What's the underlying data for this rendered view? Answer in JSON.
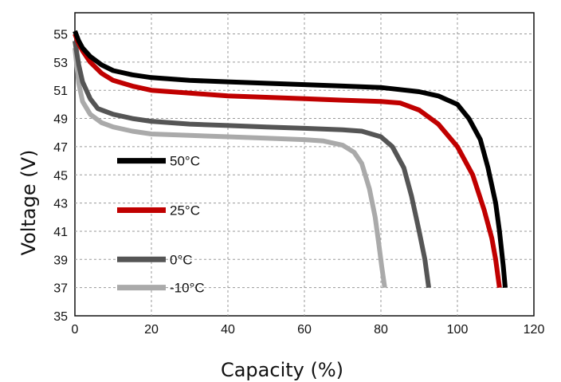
{
  "chart_data": {
    "type": "line",
    "title": "",
    "xlabel": "Capacity (%)",
    "ylabel": "Voltage (V)",
    "xlim": [
      0,
      120
    ],
    "ylim": [
      35,
      56.5
    ],
    "xticks": [
      0,
      20,
      40,
      60,
      80,
      100,
      120
    ],
    "yticks": [
      35,
      37,
      39,
      41,
      43,
      45,
      47,
      49,
      51,
      53,
      55
    ],
    "grid": true,
    "legend_position": "left",
    "series": [
      {
        "name": "50°C",
        "color": "#000000",
        "points": [
          [
            0,
            55.2
          ],
          [
            1,
            54.5
          ],
          [
            2,
            54.0
          ],
          [
            4,
            53.4
          ],
          [
            7,
            52.8
          ],
          [
            10,
            52.4
          ],
          [
            15,
            52.1
          ],
          [
            20,
            51.9
          ],
          [
            30,
            51.7
          ],
          [
            40,
            51.6
          ],
          [
            50,
            51.5
          ],
          [
            60,
            51.4
          ],
          [
            70,
            51.3
          ],
          [
            80,
            51.2
          ],
          [
            90,
            50.9
          ],
          [
            95,
            50.6
          ],
          [
            100,
            50.0
          ],
          [
            103,
            49.0
          ],
          [
            106,
            47.5
          ],
          [
            108,
            45.5
          ],
          [
            110,
            43.0
          ],
          [
            111,
            41.0
          ],
          [
            112,
            38.5
          ],
          [
            112.5,
            37.0
          ]
        ]
      },
      {
        "name": "25°C",
        "color": "#c00000",
        "points": [
          [
            0,
            55.0
          ],
          [
            1,
            54.3
          ],
          [
            2,
            53.8
          ],
          [
            4,
            53.0
          ],
          [
            7,
            52.2
          ],
          [
            10,
            51.7
          ],
          [
            15,
            51.3
          ],
          [
            20,
            51.0
          ],
          [
            30,
            50.8
          ],
          [
            40,
            50.6
          ],
          [
            50,
            50.5
          ],
          [
            60,
            50.4
          ],
          [
            70,
            50.3
          ],
          [
            80,
            50.2
          ],
          [
            85,
            50.1
          ],
          [
            90,
            49.6
          ],
          [
            95,
            48.6
          ],
          [
            100,
            47.0
          ],
          [
            104,
            45.0
          ],
          [
            107,
            42.5
          ],
          [
            109,
            40.5
          ],
          [
            110,
            39.0
          ],
          [
            111,
            37.0
          ]
        ]
      },
      {
        "name": "0°C",
        "color": "#555555",
        "points": [
          [
            0,
            54.5
          ],
          [
            1,
            52.8
          ],
          [
            2,
            51.6
          ],
          [
            4,
            50.4
          ],
          [
            6,
            49.7
          ],
          [
            10,
            49.3
          ],
          [
            15,
            49.0
          ],
          [
            20,
            48.8
          ],
          [
            30,
            48.6
          ],
          [
            40,
            48.5
          ],
          [
            50,
            48.4
          ],
          [
            60,
            48.3
          ],
          [
            70,
            48.2
          ],
          [
            75,
            48.1
          ],
          [
            80,
            47.7
          ],
          [
            83,
            47.0
          ],
          [
            86,
            45.5
          ],
          [
            88,
            43.5
          ],
          [
            90,
            41.0
          ],
          [
            91.5,
            39.0
          ],
          [
            92.5,
            37.0
          ]
        ]
      },
      {
        "name": "-10°C",
        "color": "#aaaaaa",
        "points": [
          [
            0,
            54.0
          ],
          [
            1,
            51.5
          ],
          [
            2,
            50.2
          ],
          [
            4,
            49.3
          ],
          [
            7,
            48.7
          ],
          [
            10,
            48.4
          ],
          [
            15,
            48.1
          ],
          [
            20,
            47.9
          ],
          [
            30,
            47.8
          ],
          [
            40,
            47.7
          ],
          [
            50,
            47.6
          ],
          [
            60,
            47.5
          ],
          [
            65,
            47.4
          ],
          [
            70,
            47.1
          ],
          [
            73,
            46.6
          ],
          [
            75,
            45.8
          ],
          [
            77,
            44.0
          ],
          [
            78.5,
            42.0
          ],
          [
            79.5,
            40.0
          ],
          [
            80.2,
            38.5
          ],
          [
            81,
            37.0
          ]
        ]
      }
    ]
  }
}
